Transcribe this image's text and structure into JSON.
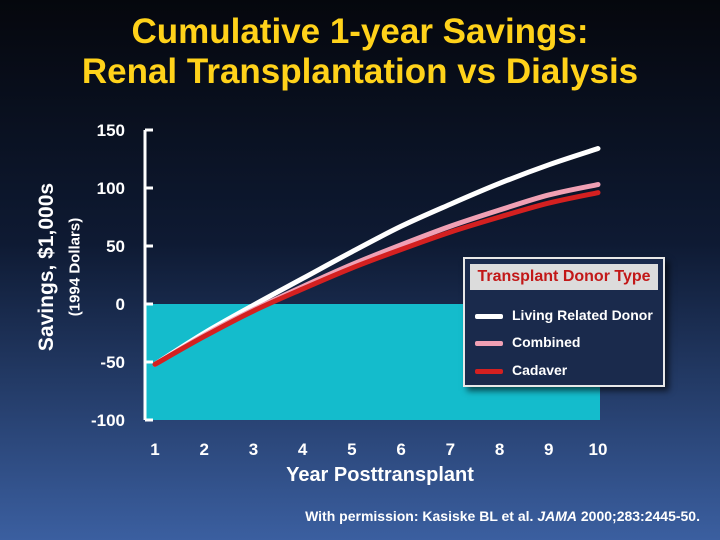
{
  "title": {
    "line1": "Cumulative 1-year Savings:",
    "line2": "Renal Transplantation vs Dialysis"
  },
  "credit": {
    "prefix": "With permission: Kasiske BL et al.",
    "journal": "JAMA",
    "suffix": "2000;283:2445-50."
  },
  "colors": {
    "title": "#ffd21a",
    "negative_region": "#14bccc",
    "living_related_donor": "#ffffff",
    "combined": "#f0a0b4",
    "cadaver": "#d42020"
  },
  "chart_data": {
    "type": "line",
    "xlabel": "Year Posttransplant",
    "ylabel": "Savings, $1,000s",
    "ylabel_sub": "(1994 Dollars)",
    "x": [
      1,
      2,
      3,
      4,
      5,
      6,
      7,
      8,
      9,
      10
    ],
    "xlim": [
      1,
      10
    ],
    "ylim": [
      -100,
      150
    ],
    "y_ticks": [
      150,
      100,
      50,
      0,
      -50,
      -100
    ],
    "grid": false,
    "shaded_region": {
      "from": -100,
      "to": 0
    },
    "legend": {
      "title": "Transplant Donor Type",
      "position": "right"
    },
    "series": [
      {
        "name": "Living Related Donor",
        "color": "#ffffff",
        "values": [
          -52,
          -25,
          -1,
          22,
          45,
          67,
          86,
          104,
          120,
          134
        ]
      },
      {
        "name": "Combined",
        "color": "#f0a0b4",
        "values": [
          -52,
          -27,
          -5,
          15,
          34,
          51,
          67,
          81,
          94,
          103
        ]
      },
      {
        "name": "Cadaver",
        "color": "#d42020",
        "values": [
          -52,
          -28,
          -6,
          13,
          31,
          47,
          62,
          75,
          87,
          96
        ]
      }
    ]
  }
}
